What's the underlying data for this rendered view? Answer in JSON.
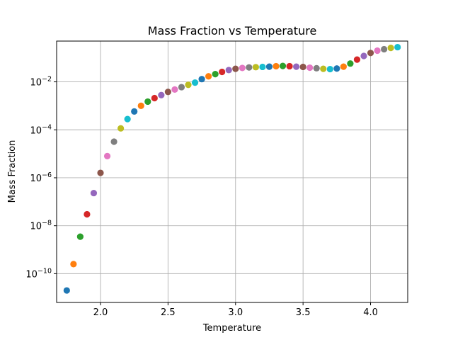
{
  "chart_data": {
    "type": "scatter",
    "title": "Mass Fraction vs Temperature",
    "xlabel": "Temperature",
    "ylabel": "Mass Fraction",
    "yscale": "log",
    "xlim": [
      1.675,
      4.275
    ],
    "ylim_log10": [
      -11.2,
      -0.3
    ],
    "grid": true,
    "x_ticks": [
      {
        "value": 2.0,
        "label": "2.0"
      },
      {
        "value": 2.5,
        "label": "2.5"
      },
      {
        "value": 3.0,
        "label": "3.0"
      },
      {
        "value": 3.5,
        "label": "3.5"
      },
      {
        "value": 4.0,
        "label": "4.0"
      }
    ],
    "y_ticks": [
      {
        "exp": -10,
        "base": "10",
        "sup": "−10"
      },
      {
        "exp": -8,
        "base": "10",
        "sup": "−8"
      },
      {
        "exp": -6,
        "base": "10",
        "sup": "−6"
      },
      {
        "exp": -4,
        "base": "10",
        "sup": "−4"
      },
      {
        "exp": -2,
        "base": "10",
        "sup": "−2"
      }
    ],
    "color_cycle": [
      "#1f77b4",
      "#ff7f0e",
      "#2ca02c",
      "#d62728",
      "#9467bd",
      "#8c564b",
      "#e377c2",
      "#7f7f7f",
      "#bcbd22",
      "#17becf"
    ],
    "x": [
      1.75,
      1.8,
      1.85,
      1.9,
      1.95,
      2.0,
      2.05,
      2.1,
      2.15,
      2.2,
      2.25,
      2.3,
      2.35,
      2.4,
      2.45,
      2.5,
      2.55,
      2.6,
      2.65,
      2.7,
      2.75,
      2.8,
      2.85,
      2.9,
      2.95,
      3.0,
      3.05,
      3.1,
      3.15,
      3.2,
      3.25,
      3.3,
      3.35,
      3.4,
      3.45,
      3.5,
      3.55,
      3.6,
      3.65,
      3.7,
      3.75,
      3.8,
      3.85,
      3.9,
      3.95,
      4.0,
      4.05,
      4.1,
      4.15,
      4.2
    ],
    "y": [
      2e-11,
      2.5e-10,
      3.5e-09,
      3e-08,
      2.3e-07,
      1.6e-06,
      8e-06,
      3.2e-05,
      0.000115,
      0.00028,
      0.00058,
      0.001,
      0.0015,
      0.0021,
      0.0028,
      0.0038,
      0.0048,
      0.006,
      0.0075,
      0.0093,
      0.013,
      0.017,
      0.021,
      0.026,
      0.031,
      0.035,
      0.038,
      0.04,
      0.041,
      0.042,
      0.043,
      0.045,
      0.046,
      0.045,
      0.043,
      0.042,
      0.039,
      0.037,
      0.035,
      0.034,
      0.036,
      0.043,
      0.058,
      0.085,
      0.12,
      0.16,
      0.2,
      0.23,
      0.26,
      0.28
    ]
  }
}
